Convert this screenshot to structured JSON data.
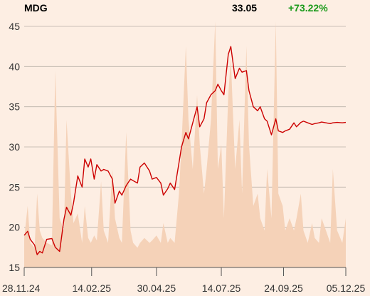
{
  "header": {
    "ticker": "MDG",
    "price": "33.05",
    "change": "+73.22%"
  },
  "colors": {
    "background": "#fdeee3",
    "line": "#cc0000",
    "volume": "#f5d2b8",
    "grid": "#b9b0a8",
    "change_positive": "#1a9a1a",
    "axis_text": "#333333"
  },
  "chart_data": {
    "type": "line",
    "title": "",
    "xlabel": "",
    "ylabel": "",
    "ylim": [
      15,
      45
    ],
    "yticks": [
      "15",
      "20",
      "25",
      "30",
      "35",
      "40",
      "45"
    ],
    "grid": true,
    "x_range": [
      "2024-11-28",
      "2025-12-05"
    ],
    "xticks": [
      {
        "date": "2024-11-28",
        "label": "28.11.24"
      },
      {
        "date": "2025-02-14",
        "label": "14.02.25"
      },
      {
        "date": "2025-04-30",
        "label": "30.04.25"
      },
      {
        "date": "2025-07-14",
        "label": "14.07.25"
      },
      {
        "date": "2025-09-24",
        "label": "24.09.25"
      },
      {
        "date": "2025-12-05",
        "label": "05.12.25"
      }
    ],
    "series": [
      {
        "type": "line",
        "x": [
          "2024-11-28",
          "2024-12-02",
          "2024-12-05",
          "2024-12-10",
          "2024-12-13",
          "2024-12-16",
          "2024-12-19",
          "2024-12-24",
          "2024-12-30",
          "2025-01-03",
          "2025-01-08",
          "2025-01-13",
          "2025-01-16",
          "2025-01-21",
          "2025-01-24",
          "2025-01-29",
          "2025-02-03",
          "2025-02-06",
          "2025-02-10",
          "2025-02-13",
          "2025-02-17",
          "2025-02-20",
          "2025-02-25",
          "2025-02-28",
          "2025-03-05",
          "2025-03-10",
          "2025-03-13",
          "2025-03-18",
          "2025-03-21",
          "2025-03-26",
          "2025-03-31",
          "2025-04-03",
          "2025-04-08",
          "2025-04-11",
          "2025-04-16",
          "2025-04-22",
          "2025-04-25",
          "2025-04-30",
          "2025-05-05",
          "2025-05-08",
          "2025-05-13",
          "2025-05-16",
          "2025-05-21",
          "2025-05-26",
          "2025-05-29",
          "2025-06-03",
          "2025-06-06",
          "2025-06-11",
          "2025-06-16",
          "2025-06-19",
          "2025-06-24",
          "2025-06-27",
          "2025-07-02",
          "2025-07-07",
          "2025-07-10",
          "2025-07-14",
          "2025-07-17",
          "2025-07-22",
          "2025-07-25",
          "2025-07-30",
          "2025-08-04",
          "2025-08-07",
          "2025-08-12",
          "2025-08-15",
          "2025-08-20",
          "2025-08-25",
          "2025-08-28",
          "2025-09-02",
          "2025-09-05",
          "2025-09-10",
          "2025-09-15",
          "2025-09-18",
          "2025-09-23",
          "2025-09-26",
          "2025-10-01",
          "2025-10-06",
          "2025-10-09",
          "2025-10-14",
          "2025-10-17",
          "2025-10-22",
          "2025-10-27",
          "2025-10-30",
          "2025-11-04",
          "2025-11-07",
          "2025-11-12",
          "2025-11-17",
          "2025-11-20",
          "2025-11-25",
          "2025-12-01",
          "2025-12-05"
        ],
        "values": [
          19.0,
          19.5,
          18.5,
          17.8,
          16.6,
          17.0,
          16.8,
          18.5,
          18.6,
          17.5,
          17.0,
          21.0,
          22.5,
          21.5,
          23.0,
          26.4,
          25.0,
          28.5,
          27.5,
          28.5,
          26.0,
          27.8,
          27.0,
          27.2,
          27.0,
          26.0,
          23.0,
          24.5,
          24.0,
          25.2,
          26.0,
          25.8,
          25.5,
          27.5,
          28.0,
          27.0,
          26.0,
          26.2,
          25.5,
          24.0,
          24.8,
          25.5,
          24.7,
          28.0,
          30.0,
          31.8,
          31.0,
          33.0,
          35.0,
          32.5,
          33.5,
          35.5,
          36.5,
          37.0,
          37.8,
          37.0,
          36.5,
          41.5,
          42.5,
          38.5,
          39.8,
          39.3,
          39.5,
          37.0,
          35.0,
          34.5,
          35.0,
          33.5,
          33.2,
          31.5,
          33.5,
          32.0,
          31.8,
          32.0,
          32.2,
          33.0,
          32.5,
          33.05,
          33.2,
          33.0,
          32.8,
          32.9,
          33.0,
          33.1,
          33.0,
          32.9,
          33.0,
          33.05,
          33.0,
          33.05
        ]
      }
    ],
    "volume": {
      "type": "area",
      "values": [
        1.2,
        2.5,
        1.0,
        0.8,
        3.0,
        1.5,
        1.2,
        1.0,
        0.9,
        8.0,
        2.0,
        1.5,
        6.0,
        3.0,
        1.8,
        2.2,
        1.0,
        2.5,
        1.2,
        1.0,
        1.3,
        1.1,
        3.5,
        1.5,
        1.0,
        4.0,
        2.0,
        1.2,
        1.0,
        5.5,
        1.5,
        1.0,
        0.8,
        1.0,
        1.2,
        1.0,
        1.1,
        1.3,
        1.0,
        1.8,
        1.0,
        1.2,
        1.0,
        3.0,
        5.0,
        9.0,
        6.0,
        4.0,
        7.0,
        5.0,
        3.0,
        4.0,
        6.0,
        10.0,
        4.0,
        5.0,
        2.0,
        7.0,
        8.5,
        4.0,
        6.0,
        3.0,
        9.0,
        5.0,
        2.5,
        3.0,
        2.0,
        1.5,
        4.0,
        2.0,
        10.0,
        3.0,
        2.5,
        1.5,
        2.0,
        1.5,
        2.0,
        3.0,
        1.5,
        1.0,
        1.8,
        1.2,
        1.0,
        2.0,
        1.5,
        1.0,
        4.0,
        1.5,
        1.0,
        2.0
      ]
    }
  }
}
